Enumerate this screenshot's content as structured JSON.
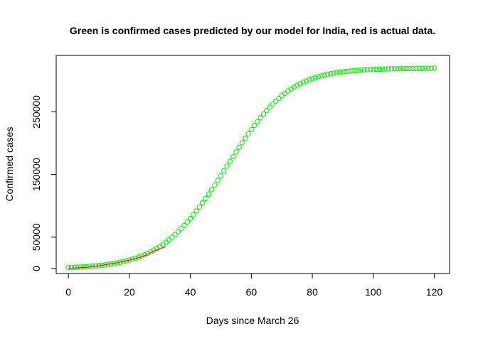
{
  "chart_data": {
    "type": "scatter",
    "title": "Green is confirmed cases predicted by our model for India, red is actual data.",
    "xlabel": "Days since March 26",
    "ylabel": "Confirmed cases",
    "xlim": [
      -4,
      125
    ],
    "ylim": [
      -8000,
      340000
    ],
    "x_ticks": [
      0,
      20,
      40,
      60,
      80,
      100,
      120
    ],
    "y_ticks": [
      0,
      50000,
      150000,
      250000
    ],
    "grid": false,
    "legend": "none",
    "series": [
      {
        "marker": "open-circle",
        "color": "#00ee00",
        "x": [
          0,
          1,
          2,
          3,
          4,
          5,
          6,
          7,
          8,
          9,
          10,
          11,
          12,
          13,
          14,
          15,
          16,
          17,
          18,
          19,
          20,
          21,
          22,
          23,
          24,
          25,
          26,
          27,
          28,
          29,
          30,
          31,
          32,
          33,
          34,
          35,
          36,
          37,
          38,
          39,
          40,
          41,
          42,
          43,
          44,
          45,
          46,
          47,
          48,
          49,
          50,
          51,
          52,
          53,
          54,
          55,
          56,
          57,
          58,
          59,
          60,
          61,
          62,
          63,
          64,
          65,
          66,
          67,
          68,
          69,
          70,
          71,
          72,
          73,
          74,
          75,
          76,
          77,
          78,
          79,
          80,
          81,
          82,
          83,
          84,
          85,
          86,
          87,
          88,
          89,
          90,
          91,
          92,
          93,
          94,
          95,
          96,
          97,
          98,
          99,
          100,
          101,
          102,
          103,
          104,
          105,
          106,
          107,
          108,
          109,
          110,
          111,
          112,
          113,
          114,
          115,
          116,
          117,
          118,
          119,
          120
        ],
        "y": [
          1500,
          1700,
          1900,
          2100,
          2400,
          2700,
          3000,
          3400,
          3800,
          4200,
          4700,
          5300,
          5900,
          6500,
          7300,
          8100,
          9000,
          10000,
          11100,
          12200,
          13500,
          14900,
          16500,
          18100,
          20000,
          22000,
          24200,
          26600,
          29200,
          32000,
          35100,
          38400,
          41900,
          45700,
          49800,
          54100,
          58700,
          63600,
          68700,
          74100,
          79800,
          85700,
          91800,
          98200,
          104800,
          111700,
          118700,
          125900,
          133200,
          140700,
          148200,
          155800,
          163400,
          171000,
          178500,
          186000,
          193400,
          200700,
          207800,
          214800,
          221600,
          228200,
          234500,
          240600,
          246500,
          252000,
          257300,
          262300,
          267000,
          271500,
          275600,
          279500,
          283100,
          286400,
          289400,
          292200,
          294800,
          297100,
          299300,
          301200,
          303000,
          304600,
          306100,
          307400,
          308600,
          309700,
          310700,
          311600,
          312400,
          313100,
          313800,
          314400,
          314900,
          315400,
          315800,
          316200,
          316600,
          316900,
          317200,
          317400,
          317700,
          317900,
          318100,
          318200,
          318400,
          318500,
          318600,
          318700,
          318800,
          318900,
          319000,
          319100,
          319100,
          319200,
          319200,
          319300,
          319300,
          319400,
          319400,
          319400,
          319500
        ]
      },
      {
        "marker": "line",
        "color": "#ff0000",
        "x": [
          0,
          1,
          2,
          3,
          4,
          5,
          6,
          7,
          8,
          9,
          10,
          11,
          12,
          13,
          14,
          15,
          16,
          17,
          18,
          19,
          20,
          21,
          22,
          23,
          24,
          25,
          26,
          27,
          28,
          29,
          30,
          31,
          32
        ],
        "y": [
          700,
          800,
          950,
          1100,
          1300,
          1600,
          1900,
          2300,
          2900,
          3500,
          4300,
          5100,
          5900,
          6700,
          7400,
          8200,
          9100,
          10100,
          11300,
          12400,
          13400,
          14400,
          15700,
          17300,
          18900,
          20500,
          22500,
          25400,
          27900,
          29400,
          31300,
          33100,
          35000
        ]
      }
    ]
  }
}
